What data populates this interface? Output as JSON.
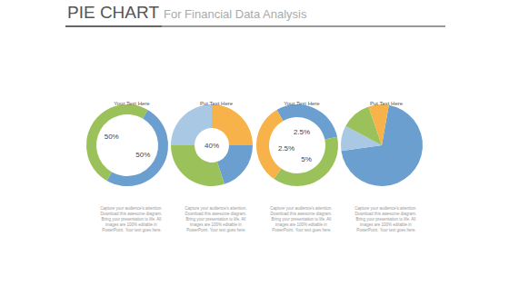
{
  "header": {
    "title": "PIE CHART",
    "subtitle": "For Financial Data Analysis"
  },
  "chart_data": [
    {
      "type": "donut",
      "title": "Your Text Here",
      "subtitle": "Capture your audience's attention. Download this awesome diagram. Bring your presentation to life. All images are 100% editable in PowerPoint. Your text goes here.",
      "values": [
        50,
        50
      ],
      "value_labels": [
        "50%",
        "50%"
      ],
      "data_labels": true,
      "colors": [
        "#6a9fd0",
        "#9bc25a"
      ]
    },
    {
      "type": "donut",
      "title": "Put Text Here",
      "subtitle": "Capture your audience's attention. Download this awesome diagram. Bring your presentation to life. All images are 100% editable in PowerPoint. Your text goes here.",
      "values": [
        25,
        20,
        30,
        25
      ],
      "annotations": [
        "40%"
      ],
      "colors": [
        "#f7b24a",
        "#6a9fd0",
        "#9bc25a",
        "#a9c8e4"
      ]
    },
    {
      "type": "donut",
      "title": "Your Text Here",
      "subtitle": "Capture your audience's attention. Download this awesome diagram. Bring your presentation to life. All images are 100% editable in PowerPoint. Your text goes here.",
      "values": [
        30,
        38,
        32
      ],
      "annotations": [
        "2.5%",
        "2.5%",
        "5%"
      ],
      "colors": [
        "#6a9fd0",
        "#9bc25a",
        "#f7b24a"
      ]
    },
    {
      "type": "pie",
      "title": "Put Text Here",
      "subtitle": "Capture your audience's attention. Download this awesome diagram. Bring your presentation to life. All images are 100% editable in PowerPoint. Your text goes here.",
      "values": [
        70,
        10,
        12,
        8
      ],
      "colors": [
        "#6a9fd0",
        "#a9c8e4",
        "#9bc25a",
        "#f7b24a"
      ]
    }
  ]
}
